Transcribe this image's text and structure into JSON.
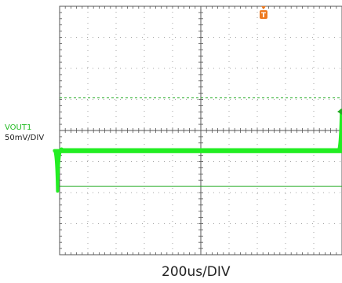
{
  "chart_data": {
    "type": "line",
    "title": "",
    "xlabel": "",
    "ylabel": "",
    "divisions": {
      "x": 10,
      "y": 8
    },
    "grid": true,
    "channel": {
      "name": "VOUT1",
      "scale_label": "50mV/DIV",
      "color": "#22ee22",
      "offset_div": -0.65,
      "noise_band_mV": 8,
      "transients": [
        {
          "time_div": 3.95,
          "shape": "undershoot",
          "peak_div": -1.3,
          "recovery_div": 0.22
        },
        {
          "time_div": 14.0,
          "shape": "overshoot",
          "peak_div": 1.3,
          "recovery_div": 0.22
        }
      ],
      "x_offset_div": -4.05
    },
    "timebase_label": "200us/DIV",
    "trigger": {
      "label": "T",
      "color": "#ee7a20"
    },
    "cursors": {
      "dashed_div": 1.05,
      "solid_div": -1.8,
      "color": "#22aa22"
    },
    "ground_marker_color": "#22aa22"
  }
}
